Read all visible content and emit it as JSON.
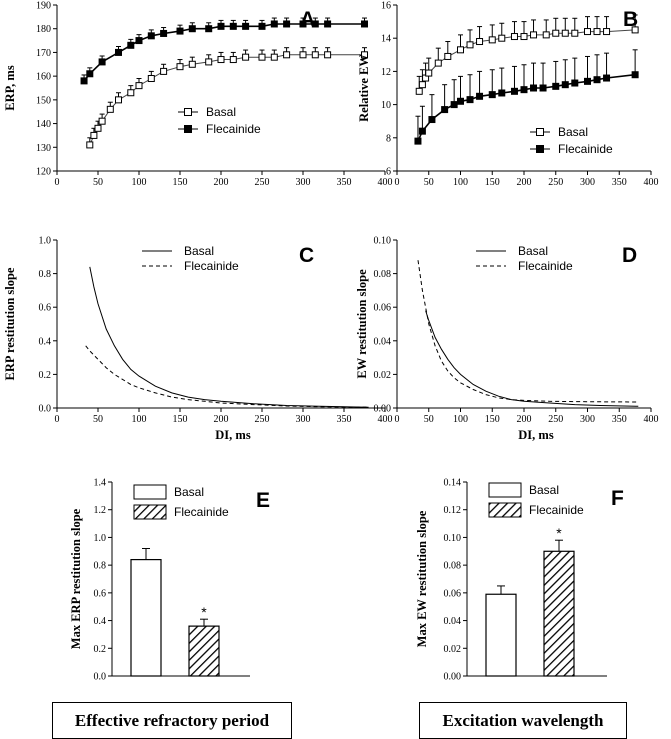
{
  "summary_boxes": {
    "left": "Effective refractory period",
    "right": "Excitation wavelength"
  },
  "chart_data": [
    {
      "panel": "A",
      "type": "scatter",
      "ylabel": "ERP, ms",
      "xlabel": "",
      "xlim": [
        0,
        400
      ],
      "ylim": [
        120,
        190
      ],
      "xticks": [
        0,
        50,
        100,
        150,
        200,
        250,
        300,
        350,
        400
      ],
      "yticks": [
        120,
        130,
        140,
        150,
        160,
        170,
        180,
        190
      ],
      "legend": [
        "Basal",
        "Flecainide"
      ],
      "legend_position": "center-right",
      "series": [
        {
          "name": "Basal",
          "marker": "open-square",
          "x": [
            40,
            45,
            50,
            55,
            65,
            75,
            90,
            100,
            115,
            130,
            150,
            165,
            185,
            200,
            215,
            230,
            250,
            265,
            280,
            300,
            315,
            330,
            375
          ],
          "y": [
            131,
            135,
            138,
            141,
            146,
            150,
            153,
            156,
            159,
            162,
            164,
            165,
            166,
            167,
            167,
            168,
            168,
            168,
            169,
            169,
            169,
            169,
            169
          ],
          "err": [
            3,
            3,
            3,
            3,
            3,
            3,
            3,
            3,
            3,
            3,
            3,
            3,
            3,
            3,
            3,
            3,
            3,
            3,
            3,
            3,
            3,
            3,
            3
          ]
        },
        {
          "name": "Flecainide",
          "marker": "filled-square",
          "x": [
            33,
            40,
            55,
            75,
            90,
            100,
            115,
            130,
            150,
            165,
            185,
            200,
            215,
            230,
            250,
            265,
            280,
            300,
            315,
            330,
            375
          ],
          "y": [
            158,
            161,
            166,
            170,
            173,
            175,
            177,
            178,
            179,
            180,
            180,
            181,
            181,
            181,
            181,
            182,
            182,
            182,
            182,
            182,
            182
          ],
          "err": [
            2.5,
            2.5,
            2.5,
            2.5,
            2.5,
            2.5,
            2.5,
            2.5,
            2.5,
            2.5,
            2.5,
            2.5,
            2.5,
            2.5,
            2.5,
            2.5,
            2.5,
            2.5,
            2.5,
            2.5,
            2.5
          ]
        }
      ]
    },
    {
      "panel": "B",
      "type": "scatter",
      "ylabel": "Relative EW",
      "xlabel": "",
      "xlim": [
        0,
        400
      ],
      "ylim": [
        6,
        16
      ],
      "xticks": [
        0,
        50,
        100,
        150,
        200,
        250,
        300,
        350,
        400
      ],
      "yticks": [
        6,
        8,
        10,
        12,
        14,
        16
      ],
      "legend": [
        "Basal",
        "Flecainide"
      ],
      "legend_position": "center-right",
      "series": [
        {
          "name": "Basal",
          "marker": "open-square",
          "x": [
            35,
            40,
            45,
            50,
            65,
            80,
            100,
            115,
            130,
            150,
            165,
            185,
            200,
            215,
            235,
            250,
            265,
            280,
            300,
            315,
            330,
            375
          ],
          "y": [
            10.8,
            11.2,
            11.6,
            11.9,
            12.5,
            12.9,
            13.3,
            13.6,
            13.8,
            13.9,
            14.0,
            14.1,
            14.1,
            14.2,
            14.2,
            14.3,
            14.3,
            14.3,
            14.4,
            14.4,
            14.4,
            14.5
          ],
          "err": [
            0.9,
            0.9,
            0.9,
            0.9,
            0.9,
            0.9,
            0.9,
            0.9,
            0.9,
            0.9,
            0.9,
            0.9,
            0.9,
            0.9,
            0.9,
            0.9,
            0.9,
            0.9,
            0.9,
            0.9,
            0.9,
            0.9
          ]
        },
        {
          "name": "Flecainide",
          "marker": "filled-square",
          "x": [
            33,
            40,
            55,
            75,
            90,
            100,
            115,
            130,
            150,
            165,
            185,
            200,
            215,
            230,
            250,
            265,
            280,
            300,
            315,
            330,
            375
          ],
          "y": [
            7.8,
            8.4,
            9.1,
            9.7,
            10.0,
            10.2,
            10.3,
            10.5,
            10.6,
            10.7,
            10.8,
            10.9,
            11.0,
            11.0,
            11.1,
            11.2,
            11.3,
            11.4,
            11.5,
            11.6,
            11.8
          ],
          "err": [
            1.5,
            1.5,
            1.5,
            1.5,
            1.5,
            1.5,
            1.5,
            1.5,
            1.5,
            1.5,
            1.5,
            1.5,
            1.5,
            1.5,
            1.5,
            1.5,
            1.5,
            1.5,
            1.5,
            1.5,
            1.5
          ]
        }
      ]
    },
    {
      "panel": "C",
      "type": "line",
      "ylabel": "ERP restitution slope",
      "xlabel": "DI, ms",
      "xlim": [
        0,
        400
      ],
      "ylim": [
        0,
        1.0
      ],
      "xticks": [
        0,
        50,
        100,
        150,
        200,
        250,
        300,
        350,
        400
      ],
      "yticks": [
        0,
        0.2,
        0.4,
        0.6,
        0.8,
        1.0
      ],
      "legend": [
        "Basal",
        "Flecainide"
      ],
      "legend_position": "top-right",
      "series": [
        {
          "name": "Basal",
          "style": "solid",
          "x": [
            40,
            45,
            50,
            60,
            70,
            80,
            90,
            100,
            120,
            140,
            160,
            180,
            200,
            240,
            280,
            320,
            380
          ],
          "y": [
            0.84,
            0.72,
            0.62,
            0.47,
            0.37,
            0.29,
            0.23,
            0.19,
            0.13,
            0.09,
            0.065,
            0.05,
            0.04,
            0.025,
            0.015,
            0.01,
            0.005
          ]
        },
        {
          "name": "Flecainide",
          "style": "dashed",
          "x": [
            35,
            40,
            50,
            60,
            70,
            80,
            90,
            100,
            120,
            140,
            160,
            180,
            200,
            240,
            280,
            320,
            380
          ],
          "y": [
            0.37,
            0.34,
            0.29,
            0.24,
            0.2,
            0.17,
            0.14,
            0.12,
            0.09,
            0.065,
            0.05,
            0.04,
            0.03,
            0.02,
            0.012,
            0.008,
            0.005
          ]
        }
      ]
    },
    {
      "panel": "D",
      "type": "line",
      "ylabel": "EW restitution slope",
      "xlabel": "DI, ms",
      "xlim": [
        0,
        400
      ],
      "ylim": [
        0,
        0.1
      ],
      "xticks": [
        0,
        50,
        100,
        150,
        200,
        250,
        300,
        350,
        400
      ],
      "yticks": [
        0,
        0.02,
        0.04,
        0.06,
        0.08,
        0.1
      ],
      "legend": [
        "Basal",
        "Flecainide"
      ],
      "legend_position": "top-right",
      "series": [
        {
          "name": "Basal",
          "style": "solid",
          "x": [
            45,
            50,
            60,
            70,
            80,
            90,
            100,
            120,
            140,
            160,
            180,
            200,
            240,
            280,
            320,
            380
          ],
          "y": [
            0.058,
            0.052,
            0.042,
            0.035,
            0.029,
            0.024,
            0.02,
            0.014,
            0.01,
            0.007,
            0.005,
            0.004,
            0.003,
            0.002,
            0.0015,
            0.001
          ]
        },
        {
          "name": "Flecainide",
          "style": "dashed",
          "x": [
            33,
            40,
            50,
            60,
            70,
            80,
            90,
            100,
            120,
            140,
            160,
            180,
            200,
            240,
            280,
            320,
            380
          ],
          "y": [
            0.088,
            0.07,
            0.05,
            0.037,
            0.028,
            0.022,
            0.018,
            0.015,
            0.011,
            0.008,
            0.006,
            0.005,
            0.0045,
            0.004,
            0.0038,
            0.0037,
            0.0036
          ]
        }
      ]
    },
    {
      "panel": "E",
      "type": "bar",
      "ylabel": "Max ERP restitution slope",
      "xlabel": "",
      "ylim": [
        0,
        1.4
      ],
      "yticks": [
        0,
        0.2,
        0.4,
        0.6,
        0.8,
        1.0,
        1.2,
        1.4
      ],
      "categories": [
        "Basal",
        "Flecainide"
      ],
      "values": [
        0.84,
        0.36
      ],
      "errors": [
        0.08,
        0.05
      ],
      "significance": [
        "",
        "*"
      ],
      "legend": [
        "Basal",
        "Flecainide"
      ],
      "legend_position": "top-right"
    },
    {
      "panel": "F",
      "type": "bar",
      "ylabel": "Max EW restitution slope",
      "xlabel": "",
      "ylim": [
        0,
        0.14
      ],
      "yticks": [
        0,
        0.02,
        0.04,
        0.06,
        0.08,
        0.1,
        0.12,
        0.14
      ],
      "categories": [
        "Basal",
        "Flecainide"
      ],
      "values": [
        0.059,
        0.09
      ],
      "errors": [
        0.006,
        0.008
      ],
      "significance": [
        "",
        "*"
      ],
      "legend": [
        "Basal",
        "Flecainide"
      ],
      "legend_position": "top-right"
    }
  ]
}
